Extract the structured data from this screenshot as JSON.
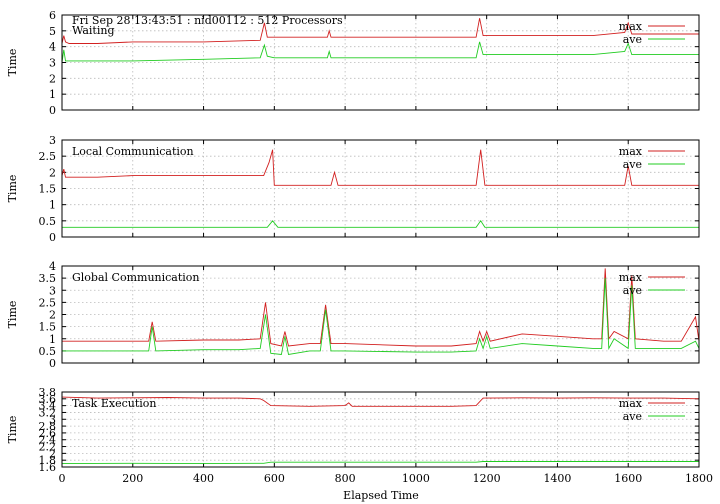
{
  "header": {
    "title": "Fri Sep 28 13:43:51 : nid00112 : 512 Processors"
  },
  "xlabel": "Elapsed Time",
  "x_ticks": [
    "0",
    "200",
    "400",
    "600",
    "800",
    "1000",
    "1200",
    "1400",
    "1600",
    "1800"
  ],
  "colors": {
    "max": "#d22020",
    "ave": "#22cc22"
  },
  "chart_data": [
    {
      "type": "line",
      "title": "Waiting",
      "ylabel": "Time",
      "xlim": [
        0,
        1800
      ],
      "ylim": [
        0,
        6
      ],
      "y_ticks": [
        "0",
        "1",
        "2",
        "3",
        "4",
        "5",
        "6"
      ],
      "grid": true,
      "legend": "top-right",
      "series": [
        {
          "name": "max",
          "x": [
            0,
            5,
            10,
            20,
            100,
            200,
            400,
            560,
            572,
            580,
            600,
            700,
            750,
            755,
            760,
            800,
            1000,
            1170,
            1180,
            1190,
            1300,
            1500,
            1590,
            1600,
            1610,
            1700,
            1800
          ],
          "y": [
            4.2,
            4.7,
            4.3,
            4.2,
            4.2,
            4.3,
            4.3,
            4.4,
            5.5,
            4.6,
            4.6,
            4.6,
            4.6,
            5.0,
            4.6,
            4.6,
            4.6,
            4.6,
            5.8,
            4.7,
            4.7,
            4.7,
            4.9,
            5.5,
            4.8,
            4.8,
            4.8
          ]
        },
        {
          "name": "ave",
          "x": [
            0,
            5,
            10,
            20,
            100,
            200,
            400,
            560,
            572,
            580,
            600,
            700,
            750,
            755,
            760,
            800,
            1000,
            1170,
            1180,
            1190,
            1300,
            1500,
            1590,
            1600,
            1610,
            1700,
            1800
          ],
          "y": [
            3.0,
            3.8,
            3.1,
            3.1,
            3.1,
            3.1,
            3.2,
            3.3,
            4.1,
            3.4,
            3.3,
            3.3,
            3.3,
            3.7,
            3.3,
            3.3,
            3.3,
            3.3,
            4.3,
            3.5,
            3.5,
            3.5,
            3.7,
            4.2,
            3.5,
            3.5,
            3.5
          ]
        }
      ]
    },
    {
      "type": "line",
      "title": "Local Communication",
      "ylabel": "Time",
      "xlim": [
        0,
        1800
      ],
      "ylim": [
        0,
        3
      ],
      "y_ticks": [
        "0",
        "0.5",
        "1",
        "1.5",
        "2",
        "2.5",
        "3"
      ],
      "grid": true,
      "legend": "top-right",
      "series": [
        {
          "name": "max",
          "x": [
            0,
            5,
            10,
            100,
            200,
            300,
            400,
            500,
            570,
            585,
            595,
            600,
            700,
            760,
            770,
            780,
            1000,
            1170,
            1183,
            1195,
            1300,
            1500,
            1590,
            1600,
            1610,
            1700,
            1800
          ],
          "y": [
            1.9,
            2.1,
            1.85,
            1.85,
            1.9,
            1.9,
            1.9,
            1.9,
            1.9,
            2.3,
            2.7,
            1.6,
            1.6,
            1.6,
            2.0,
            1.6,
            1.6,
            1.6,
            2.7,
            1.6,
            1.6,
            1.6,
            1.6,
            2.2,
            1.6,
            1.6,
            1.6
          ]
        },
        {
          "name": "ave",
          "x": [
            0,
            100,
            400,
            580,
            595,
            610,
            800,
            1000,
            1170,
            1183,
            1195,
            1400,
            1600,
            1800
          ],
          "y": [
            0.3,
            0.3,
            0.3,
            0.3,
            0.5,
            0.3,
            0.3,
            0.3,
            0.3,
            0.5,
            0.3,
            0.3,
            0.3,
            0.3
          ]
        }
      ]
    },
    {
      "type": "line",
      "title": "Global Communication",
      "ylabel": "Time",
      "xlim": [
        0,
        1800
      ],
      "ylim": [
        0,
        4
      ],
      "y_ticks": [
        "0",
        "0.5",
        "1",
        "1.5",
        "2",
        "2.5",
        "3",
        "3.5",
        "4"
      ],
      "grid": true,
      "legend": "top-right",
      "series": [
        {
          "name": "max",
          "x": [
            0,
            100,
            200,
            245,
            255,
            265,
            400,
            500,
            560,
            575,
            590,
            620,
            630,
            640,
            700,
            730,
            745,
            760,
            800,
            1000,
            1100,
            1170,
            1180,
            1190,
            1200,
            1210,
            1300,
            1400,
            1500,
            1525,
            1535,
            1545,
            1560,
            1600,
            1610,
            1620,
            1700,
            1750,
            1790,
            1800
          ],
          "y": [
            0.9,
            0.9,
            0.9,
            0.9,
            1.7,
            0.9,
            0.95,
            0.95,
            1.0,
            2.5,
            0.8,
            0.7,
            1.3,
            0.7,
            0.8,
            0.8,
            2.4,
            0.8,
            0.8,
            0.7,
            0.7,
            0.8,
            1.3,
            0.9,
            1.3,
            0.9,
            1.2,
            1.1,
            1.0,
            1.0,
            3.9,
            1.0,
            1.3,
            1.0,
            3.6,
            1.0,
            0.9,
            0.9,
            1.9,
            0.9
          ]
        },
        {
          "name": "ave",
          "x": [
            0,
            100,
            200,
            245,
            255,
            265,
            400,
            500,
            560,
            575,
            590,
            620,
            630,
            640,
            700,
            730,
            745,
            760,
            800,
            1000,
            1100,
            1170,
            1180,
            1190,
            1200,
            1210,
            1300,
            1400,
            1500,
            1525,
            1535,
            1545,
            1560,
            1600,
            1610,
            1620,
            1700,
            1750,
            1790,
            1800
          ],
          "y": [
            0.5,
            0.5,
            0.5,
            0.5,
            1.5,
            0.5,
            0.55,
            0.55,
            0.6,
            2.0,
            0.4,
            0.35,
            1.1,
            0.35,
            0.5,
            0.5,
            2.2,
            0.5,
            0.5,
            0.45,
            0.45,
            0.5,
            1.0,
            0.6,
            1.1,
            0.6,
            0.8,
            0.7,
            0.6,
            0.6,
            3.5,
            0.6,
            1.0,
            0.6,
            3.2,
            0.6,
            0.6,
            0.6,
            0.9,
            0.6
          ]
        }
      ]
    },
    {
      "type": "line",
      "title": "Task Execution",
      "ylabel": "Time",
      "xlim": [
        0,
        1800
      ],
      "ylim": [
        1.6,
        3.8
      ],
      "y_ticks": [
        "1.6",
        "1.8",
        "2",
        "2.2",
        "2.4",
        "2.6",
        "2.8",
        "3",
        "3.2",
        "3.4",
        "3.6",
        "3.8"
      ],
      "grid": true,
      "legend": "top-right",
      "series": [
        {
          "name": "max",
          "x": [
            0,
            100,
            200,
            300,
            400,
            500,
            560,
            570,
            590,
            700,
            800,
            810,
            820,
            1000,
            1100,
            1170,
            1190,
            1300,
            1400,
            1500,
            1600,
            1700,
            1800
          ],
          "y": [
            3.65,
            3.62,
            3.63,
            3.64,
            3.62,
            3.62,
            3.6,
            3.55,
            3.4,
            3.38,
            3.4,
            3.48,
            3.38,
            3.38,
            3.38,
            3.4,
            3.62,
            3.63,
            3.62,
            3.63,
            3.62,
            3.62,
            3.6
          ]
        },
        {
          "name": "ave",
          "x": [
            0,
            200,
            400,
            570,
            590,
            800,
            1000,
            1170,
            1190,
            1400,
            1600,
            1800
          ],
          "y": [
            1.7,
            1.71,
            1.7,
            1.71,
            1.74,
            1.74,
            1.74,
            1.74,
            1.76,
            1.76,
            1.76,
            1.76
          ]
        }
      ]
    }
  ]
}
